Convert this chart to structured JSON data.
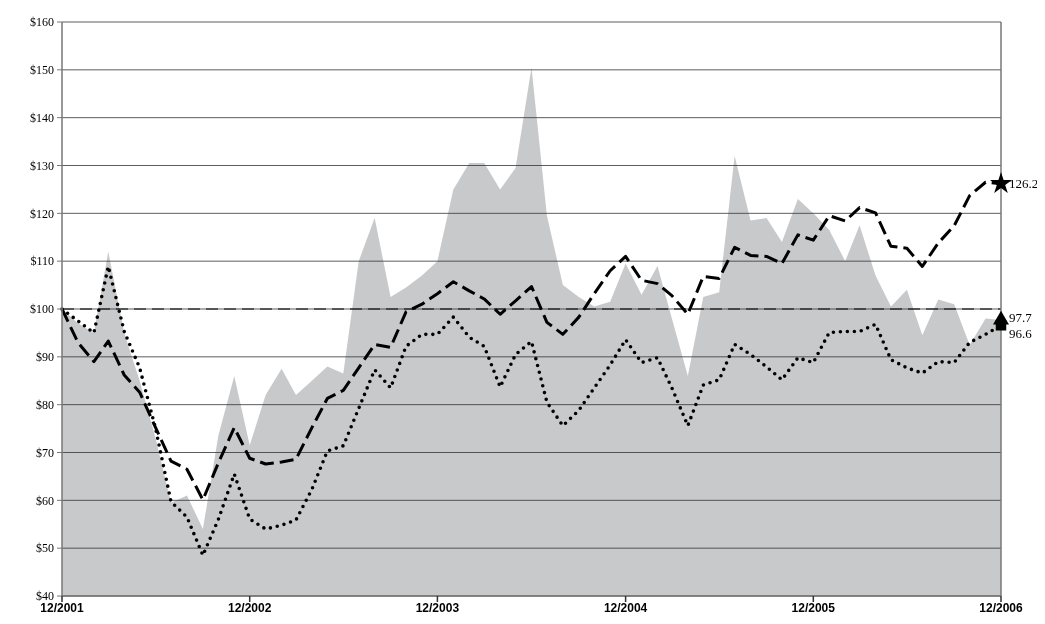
{
  "chart_data": {
    "type": "line",
    "x": [
      "2001-12",
      "2002-01",
      "2002-02",
      "2002-03",
      "2002-04",
      "2002-05",
      "2002-06",
      "2002-07",
      "2002-08",
      "2002-09",
      "2002-10",
      "2002-11",
      "2002-12",
      "2003-01",
      "2003-02",
      "2003-03",
      "2003-04",
      "2003-05",
      "2003-06",
      "2003-07",
      "2003-08",
      "2003-09",
      "2003-10",
      "2003-11",
      "2003-12",
      "2004-01",
      "2004-02",
      "2004-03",
      "2004-04",
      "2004-05",
      "2004-06",
      "2004-07",
      "2004-08",
      "2004-09",
      "2004-10",
      "2004-11",
      "2004-12",
      "2005-01",
      "2005-02",
      "2005-03",
      "2005-04",
      "2005-05",
      "2005-06",
      "2005-07",
      "2005-08",
      "2005-09",
      "2005-10",
      "2005-11",
      "2005-12",
      "2006-01",
      "2006-02",
      "2006-03",
      "2006-04",
      "2006-05",
      "2006-06",
      "2006-07",
      "2006-08",
      "2006-09",
      "2006-10",
      "2006-11",
      "2006-12"
    ],
    "series": [
      {
        "type": "area",
        "color": "#c8c9cb",
        "values": [
          100,
          97,
          95,
          112,
          95,
          85,
          73,
          59.5,
          61,
          54,
          73.5,
          86,
          71.5,
          82,
          87.5,
          82,
          85,
          88,
          86.5,
          110,
          119,
          102.5,
          104.5,
          107,
          110,
          125,
          130.5,
          130.5,
          125,
          129.5,
          150.5,
          119.5,
          105,
          102.5,
          100.5,
          101.5,
          109.5,
          103,
          109,
          98,
          86,
          102.5,
          103.5,
          132,
          118.5,
          119,
          114,
          123,
          120,
          116.5,
          110,
          117.5,
          107,
          100.5,
          104,
          94.5,
          102,
          101,
          92.5,
          98,
          97.7
        ]
      },
      {
        "color": "#000000",
        "line_style": "dashed",
        "values": [
          100,
          93,
          89,
          93.3,
          86.2,
          82.6,
          75.2,
          68.2,
          66.5,
          60.1,
          67.8,
          75.2,
          68.8,
          67.6,
          68,
          68.6,
          75.2,
          81.3,
          83,
          87.7,
          92.6,
          92,
          99.4,
          101,
          103.2,
          105.7,
          103.8,
          102.1,
          98.9,
          101.7,
          104.7,
          97.2,
          94.7,
          98.3,
          103.2,
          108,
          111,
          106,
          105.3,
          102.8,
          98.9,
          106.8,
          106.4,
          112.9,
          111.2,
          111,
          109.5,
          115.5,
          114.4,
          119.5,
          118.4,
          121.2,
          120.1,
          113.1,
          112.7,
          108.9,
          113.8,
          117.4,
          123.7,
          126.5,
          126.2
        ]
      },
      {
        "color": "#000000",
        "line_style": "dotted",
        "values": [
          100,
          97.5,
          95,
          108.9,
          95.3,
          87.7,
          75,
          59.7,
          56.5,
          48.5,
          56,
          65.5,
          56.1,
          54,
          54.8,
          55.9,
          62.3,
          70.3,
          71.4,
          79.2,
          87.3,
          83.5,
          92.2,
          94.7,
          94.7,
          98.3,
          94.1,
          92.2,
          83.7,
          90.5,
          93.2,
          80.5,
          75.6,
          78.8,
          83.5,
          88.3,
          93.6,
          88.8,
          89.8,
          83.5,
          75.6,
          84.1,
          85.2,
          92.6,
          90.5,
          87.9,
          85.2,
          89.8,
          88.8,
          95.1,
          95.3,
          95.3,
          96.8,
          89.4,
          87.7,
          86.6,
          89,
          88.8,
          93,
          94.7,
          96.6
        ]
      },
      {
        "type": "scatter",
        "color": "#000000",
        "marker": "triangle",
        "x": [
          "2006-12"
        ],
        "values": [
          97.7
        ],
        "value_labels": [
          "97.7"
        ]
      },
      {
        "type": "scatter",
        "color": "#000000",
        "marker": "star",
        "x": [
          "2006-12"
        ],
        "values": [
          126.2
        ],
        "value_labels": [
          "126.2"
        ]
      },
      {
        "type": "scatter",
        "color": "#000000",
        "marker": "square",
        "x": [
          "2006-12"
        ],
        "values": [
          96.6
        ],
        "value_labels": [
          "96.6"
        ]
      }
    ],
    "xlim": [
      "2001-12",
      "2006-12"
    ],
    "xticks": [
      {
        "value": "2001-12",
        "label": "12/2001"
      },
      {
        "value": "2002-12",
        "label": "12/2002"
      },
      {
        "value": "2003-12",
        "label": "12/2003"
      },
      {
        "value": "2004-12",
        "label": "12/2004"
      },
      {
        "value": "2005-12",
        "label": "12/2005"
      },
      {
        "value": "2006-12",
        "label": "12/2006"
      }
    ],
    "ylim": [
      40,
      160
    ],
    "yticks": [
      {
        "value": 40,
        "label": "$40"
      },
      {
        "value": 50,
        "label": "$50"
      },
      {
        "value": 60,
        "label": "$60"
      },
      {
        "value": 70,
        "label": "$70"
      },
      {
        "value": 80,
        "label": "$80"
      },
      {
        "value": 90,
        "label": "$90"
      },
      {
        "value": 100,
        "label": "$100"
      },
      {
        "value": 110,
        "label": "$110"
      },
      {
        "value": 120,
        "label": "$120"
      },
      {
        "value": 130,
        "label": "$130"
      },
      {
        "value": 140,
        "label": "$140"
      },
      {
        "value": 150,
        "label": "$150"
      },
      {
        "value": 160,
        "label": "$160"
      }
    ],
    "grid": "y",
    "ref_lines": [
      {
        "axis": "y",
        "value": 100,
        "color": "#000000",
        "line_style": "dashed"
      }
    ]
  }
}
